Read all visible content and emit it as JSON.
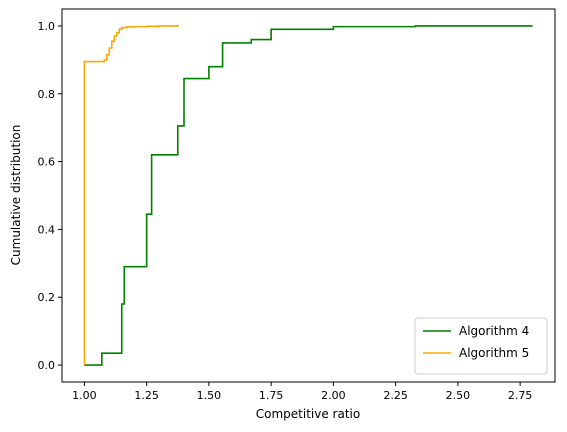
{
  "chart_data": {
    "type": "line",
    "title": "",
    "xlabel": "Competitive ratio",
    "ylabel": "Cumulative distribution",
    "xlim": [
      0.91,
      2.89
    ],
    "ylim": [
      -0.05,
      1.05
    ],
    "xticks": [
      "1.00",
      "1.25",
      "1.50",
      "1.75",
      "2.00",
      "2.25",
      "2.50",
      "2.75"
    ],
    "yticks": [
      "0.0",
      "0.2",
      "0.4",
      "0.6",
      "0.8",
      "1.0"
    ],
    "grid": false,
    "legend_position": "lower right",
    "series": [
      {
        "name": "Algorithm 4",
        "color": "#008000",
        "step": true,
        "x": [
          1.0,
          1.07,
          1.15,
          1.16,
          1.25,
          1.27,
          1.375,
          1.4,
          1.5,
          1.555,
          1.67,
          1.75,
          1.875,
          2.0,
          2.33,
          2.8
        ],
        "y": [
          0.0,
          0.035,
          0.18,
          0.29,
          0.445,
          0.62,
          0.705,
          0.845,
          0.88,
          0.95,
          0.96,
          0.99,
          0.99,
          0.998,
          1.0,
          1.0
        ]
      },
      {
        "name": "Algorithm 5",
        "color": "#FFA500",
        "step": true,
        "x": [
          1.0,
          1.0,
          1.08,
          1.09,
          1.1,
          1.11,
          1.12,
          1.13,
          1.14,
          1.15,
          1.17,
          1.2,
          1.25,
          1.3,
          1.38
        ],
        "y": [
          0.0,
          0.895,
          0.9,
          0.915,
          0.935,
          0.955,
          0.97,
          0.98,
          0.99,
          0.995,
          0.997,
          0.998,
          0.999,
          1.0,
          1.0
        ]
      }
    ]
  }
}
